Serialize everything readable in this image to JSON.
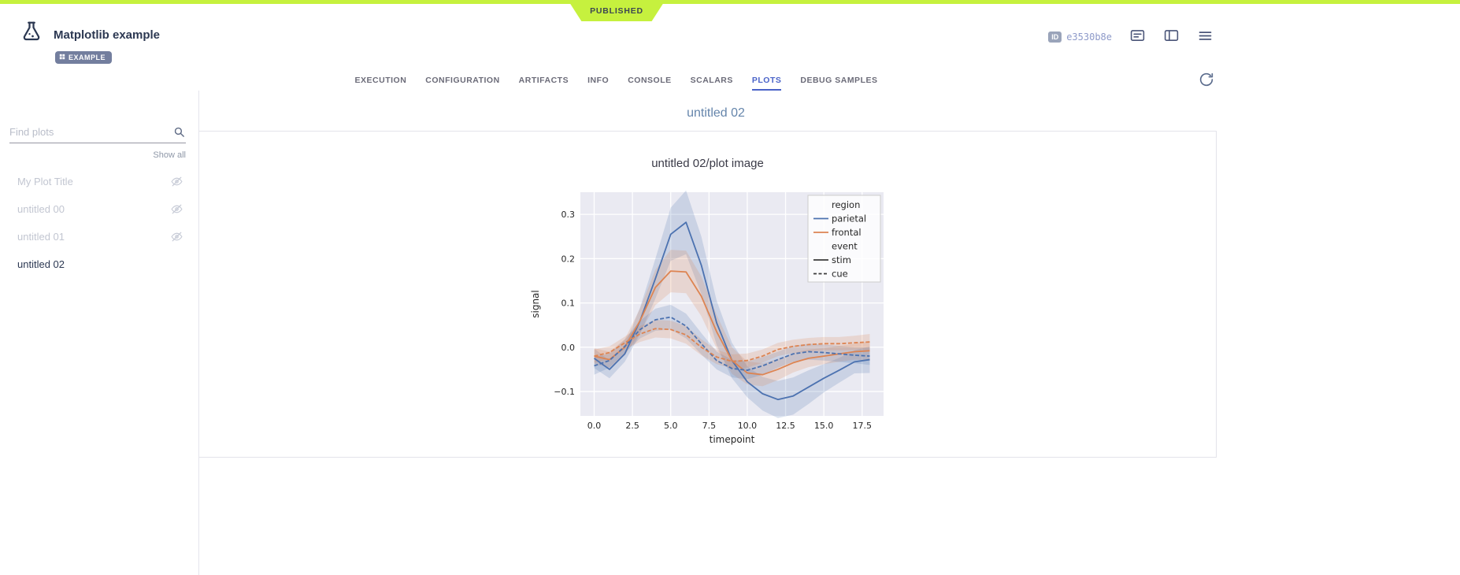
{
  "colors": {
    "published_green": "#c6f13e",
    "active_tab_blue": "#4a63c8",
    "series_blue": "#4c72b0",
    "series_orange": "#dd8452"
  },
  "status_banner": {
    "label": "PUBLISHED"
  },
  "header": {
    "title": "Matplotlib example",
    "tag": "EXAMPLE",
    "id_label": "ID",
    "id_value": "e3530b8e"
  },
  "tabs": {
    "active": "PLOTS",
    "items": [
      {
        "label": "EXECUTION"
      },
      {
        "label": "CONFIGURATION"
      },
      {
        "label": "ARTIFACTS"
      },
      {
        "label": "INFO"
      },
      {
        "label": "CONSOLE"
      },
      {
        "label": "SCALARS"
      },
      {
        "label": "PLOTS"
      },
      {
        "label": "DEBUG SAMPLES"
      }
    ]
  },
  "sidebar": {
    "search_placeholder": "Find plots",
    "show_all_label": "Show all",
    "items": [
      {
        "label": "My Plot Title",
        "hidden": true
      },
      {
        "label": "untitled 00",
        "hidden": true
      },
      {
        "label": "untitled 01",
        "hidden": true
      },
      {
        "label": "untitled 02",
        "hidden": false
      }
    ]
  },
  "main": {
    "section_title": "untitled 02",
    "plot_title": "untitled 02/plot image"
  },
  "chart_data": {
    "type": "line",
    "title": "untitled 02/plot image",
    "xlabel": "timepoint",
    "ylabel": "signal",
    "xlim": [
      -0.9,
      18.9
    ],
    "ylim": [
      -0.155,
      0.35
    ],
    "xticks": [
      0,
      2.5,
      5,
      7.5,
      10,
      12.5,
      15,
      17.5
    ],
    "yticks": [
      -0.1,
      0,
      0.1,
      0.2,
      0.3
    ],
    "background": "#eaeaf2",
    "grid_color": "#ffffff",
    "grid": true,
    "legend_position": "upper right",
    "x": [
      0,
      1,
      2,
      3,
      4,
      5,
      6,
      7,
      8,
      9,
      10,
      11,
      12,
      13,
      14,
      15,
      16,
      17,
      18
    ],
    "series": [
      {
        "name": "parietal-stim",
        "region": "parietal",
        "event": "stim",
        "color": "#4c72b0",
        "dash": false,
        "values": [
          -0.025,
          -0.05,
          -0.015,
          0.06,
          0.155,
          0.255,
          0.282,
          0.185,
          0.055,
          -0.03,
          -0.078,
          -0.105,
          -0.118,
          -0.11,
          -0.09,
          -0.07,
          -0.052,
          -0.033,
          -0.028
        ],
        "ci": [
          0.022,
          0.02,
          0.018,
          0.03,
          0.045,
          0.06,
          0.072,
          0.065,
          0.05,
          0.04,
          0.035,
          0.038,
          0.042,
          0.042,
          0.038,
          0.032,
          0.028,
          0.026,
          0.03
        ]
      },
      {
        "name": "frontal-stim",
        "region": "frontal",
        "event": "stim",
        "color": "#dd8452",
        "dash": false,
        "values": [
          -0.02,
          -0.028,
          0.0,
          0.06,
          0.135,
          0.172,
          0.17,
          0.115,
          0.035,
          -0.03,
          -0.058,
          -0.062,
          -0.05,
          -0.035,
          -0.025,
          -0.02,
          -0.015,
          -0.01,
          -0.008
        ],
        "ci": [
          0.018,
          0.018,
          0.018,
          0.028,
          0.04,
          0.048,
          0.048,
          0.045,
          0.038,
          0.03,
          0.026,
          0.026,
          0.024,
          0.022,
          0.02,
          0.018,
          0.018,
          0.018,
          0.022
        ]
      },
      {
        "name": "parietal-cue",
        "region": "parietal",
        "event": "cue",
        "color": "#4c72b0",
        "dash": true,
        "values": [
          -0.042,
          -0.03,
          0.002,
          0.04,
          0.062,
          0.068,
          0.048,
          0.008,
          -0.03,
          -0.048,
          -0.052,
          -0.042,
          -0.028,
          -0.015,
          -0.01,
          -0.012,
          -0.015,
          -0.018,
          -0.02
        ],
        "ci": [
          0.02,
          0.016,
          0.015,
          0.02,
          0.025,
          0.028,
          0.028,
          0.024,
          0.02,
          0.02,
          0.02,
          0.02,
          0.018,
          0.018,
          0.018,
          0.018,
          0.018,
          0.018,
          0.02
        ]
      },
      {
        "name": "frontal-cue",
        "region": "frontal",
        "event": "cue",
        "color": "#dd8452",
        "dash": true,
        "values": [
          -0.02,
          -0.012,
          0.01,
          0.03,
          0.042,
          0.04,
          0.028,
          0.0,
          -0.022,
          -0.032,
          -0.03,
          -0.02,
          -0.005,
          0.002,
          0.006,
          0.008,
          0.008,
          0.01,
          0.012
        ],
        "ci": [
          0.015,
          0.014,
          0.014,
          0.018,
          0.02,
          0.02,
          0.02,
          0.018,
          0.016,
          0.016,
          0.016,
          0.015,
          0.015,
          0.015,
          0.015,
          0.015,
          0.015,
          0.016,
          0.018
        ]
      }
    ],
    "legend": {
      "groups": [
        {
          "title": "region",
          "entries": [
            {
              "label": "parietal",
              "color": "#4c72b0",
              "dash": false
            },
            {
              "label": "frontal",
              "color": "#dd8452",
              "dash": false
            }
          ]
        },
        {
          "title": "event",
          "entries": [
            {
              "label": "stim",
              "color": "#3a3a3a",
              "dash": false
            },
            {
              "label": "cue",
              "color": "#3a3a3a",
              "dash": true
            }
          ]
        }
      ]
    }
  }
}
